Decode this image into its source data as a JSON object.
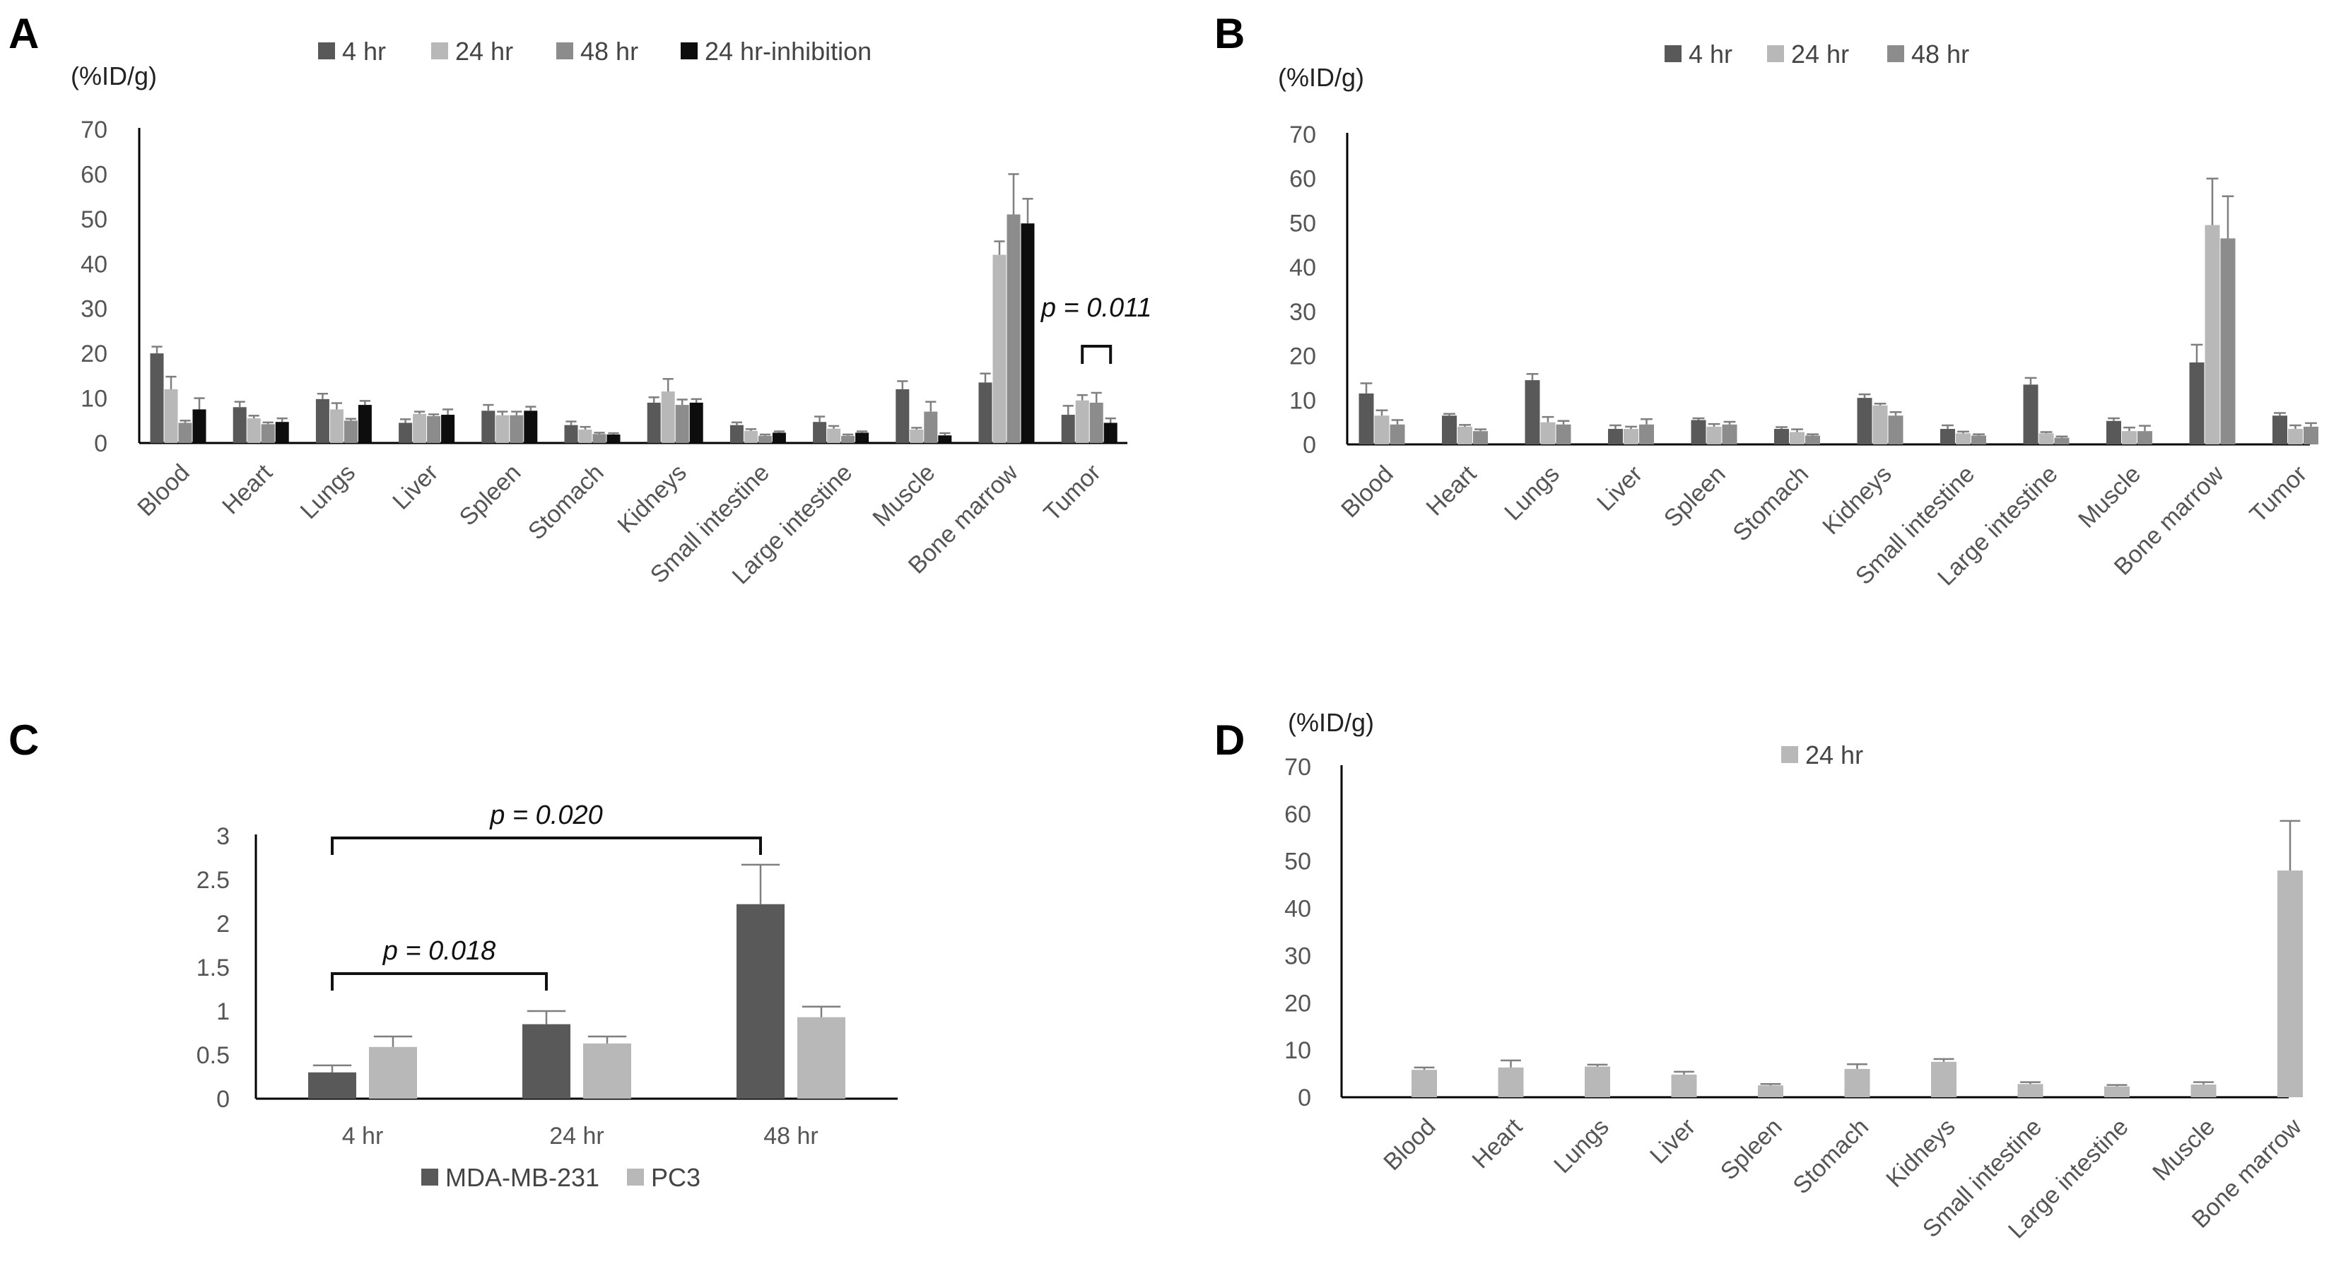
{
  "colors": {
    "4 hr": "#595959",
    "24 hr": "#b8b8b8",
    "48 hr": "#8c8c8c",
    "24 hr-inhibition": "#0d0d0d",
    "MDA-MB-231": "#595959",
    "PC3": "#b8b8b8",
    "axis": "#000000",
    "error": "#7f7f7f"
  },
  "chart_data": [
    {
      "panel": "A",
      "type": "bar",
      "unit_label": "(%ID/g)",
      "ylim": [
        0,
        70
      ],
      "yticks": [
        0,
        10,
        20,
        30,
        40,
        50,
        60,
        70
      ],
      "categories": [
        "Blood",
        "Heart",
        "Lungs",
        "Liver",
        "Spleen",
        "Stomach",
        "Kidneys",
        "Small intestine",
        "Large intestine",
        "Muscle",
        "Bone marrow",
        "Tumor"
      ],
      "series": [
        {
          "name": "4 hr",
          "values": [
            20,
            8,
            9.8,
            4.5,
            7.2,
            4,
            9,
            4,
            4.7,
            12,
            13.5,
            6.3
          ],
          "errors": [
            1.5,
            1.2,
            1.2,
            0.8,
            1.3,
            0.8,
            1.2,
            0.6,
            1.2,
            1.8,
            2,
            2
          ]
        },
        {
          "name": "24 hr",
          "values": [
            12,
            5.5,
            7.5,
            6.5,
            6.2,
            3,
            11.5,
            2.7,
            3.2,
            3,
            42,
            9.5
          ],
          "errors": [
            2.8,
            0.6,
            1.4,
            0.5,
            0.8,
            0.6,
            2.8,
            0.4,
            0.6,
            0.4,
            3,
            1.2
          ]
        },
        {
          "name": "48 hr",
          "values": [
            4.5,
            4.2,
            5,
            6,
            6.2,
            2,
            8.5,
            1.6,
            1.6,
            7,
            51,
            9
          ],
          "errors": [
            0.5,
            0.4,
            0.4,
            0.4,
            0.8,
            0.3,
            1.2,
            0.3,
            0.3,
            2.2,
            9,
            2.2
          ]
        },
        {
          "name": "24 hr-inhibition",
          "values": [
            7.5,
            4.7,
            8.5,
            6.3,
            7.2,
            1.9,
            9,
            2.3,
            2.3,
            1.7,
            49,
            4.5
          ],
          "errors": [
            2.5,
            0.8,
            0.9,
            1.2,
            0.9,
            0.3,
            0.8,
            0.3,
            0.3,
            0.5,
            5.5,
            1
          ]
        }
      ],
      "annotations": [
        {
          "text": "p = 0.011",
          "category": "Tumor",
          "from_series": 1,
          "to_series": 3
        }
      ]
    },
    {
      "panel": "B",
      "type": "bar",
      "unit_label": "(%ID/g)",
      "ylim": [
        0,
        70
      ],
      "yticks": [
        0,
        10,
        20,
        30,
        40,
        50,
        60,
        70
      ],
      "categories": [
        "Blood",
        "Heart",
        "Lungs",
        "Liver",
        "Spleen",
        "Stomach",
        "Kidneys",
        "Small intestine",
        "Large intestine",
        "Muscle",
        "Bone marrow",
        "Tumor"
      ],
      "series": [
        {
          "name": "4 hr",
          "values": [
            11.5,
            6.5,
            14.5,
            3.5,
            5.5,
            3.5,
            10.5,
            3.5,
            13.5,
            5.3,
            18.5,
            6.5
          ],
          "errors": [
            2.3,
            0.4,
            1.4,
            0.8,
            0.4,
            0.4,
            0.8,
            0.8,
            1.5,
            0.6,
            4,
            0.6
          ]
        },
        {
          "name": "24 hr",
          "values": [
            6.5,
            4,
            5,
            3.5,
            4,
            2.8,
            8.8,
            2.5,
            2.5,
            3,
            49.5,
            3.5
          ],
          "errors": [
            1.2,
            0.4,
            1.2,
            0.5,
            0.6,
            0.6,
            0.4,
            0.4,
            0.3,
            0.8,
            10.5,
            0.8
          ]
        },
        {
          "name": "48 hr",
          "values": [
            4.5,
            3,
            4.5,
            4.5,
            4.5,
            2,
            6.5,
            2,
            1.5,
            3,
            46.5,
            4
          ],
          "errors": [
            1,
            0.4,
            0.8,
            1.2,
            0.6,
            0.3,
            0.8,
            0.3,
            0.3,
            1.2,
            9.5,
            0.8
          ]
        }
      ]
    },
    {
      "panel": "C",
      "type": "bar",
      "ylim": [
        0,
        3
      ],
      "yticks": [
        0,
        0.5,
        1,
        1.5,
        2,
        2.5,
        3
      ],
      "ytick_labels": [
        "0",
        "0.5",
        "1",
        "1.5",
        "2",
        "2.5",
        "3"
      ],
      "categories": [
        "4 hr",
        "24 hr",
        "48 hr"
      ],
      "series": [
        {
          "name": "MDA-MB-231",
          "values": [
            0.3,
            0.85,
            2.22
          ],
          "errors": [
            0.08,
            0.15,
            0.45
          ]
        },
        {
          "name": "PC3",
          "values": [
            0.59,
            0.63,
            0.93
          ],
          "errors": [
            0.12,
            0.08,
            0.12
          ]
        }
      ],
      "annotations": [
        {
          "text": "p = 0.018",
          "from_category": 0,
          "to_category": 1,
          "series": 0
        },
        {
          "text": "p = 0.020",
          "from_category": 0,
          "to_category": 2,
          "series": 0
        }
      ]
    },
    {
      "panel": "D",
      "type": "bar",
      "unit_label": "(%ID/g)",
      "ylim": [
        0,
        70
      ],
      "yticks": [
        0,
        10,
        20,
        30,
        40,
        50,
        60,
        70
      ],
      "categories": [
        "Blood",
        "Heart",
        "Lungs",
        "Liver",
        "Spleen",
        "Stomach",
        "Kidneys",
        "Small intestine",
        "Large intestine",
        "Muscle",
        "Bone marrow"
      ],
      "series": [
        {
          "name": "24 hr",
          "values": [
            5.8,
            6.3,
            6.5,
            4.8,
            2.5,
            6,
            7.5,
            2.8,
            2.3,
            2.7,
            48
          ],
          "errors": [
            0.5,
            1.5,
            0.4,
            0.6,
            0.3,
            1,
            0.6,
            0.4,
            0.3,
            0.5,
            10.5
          ]
        }
      ]
    }
  ]
}
